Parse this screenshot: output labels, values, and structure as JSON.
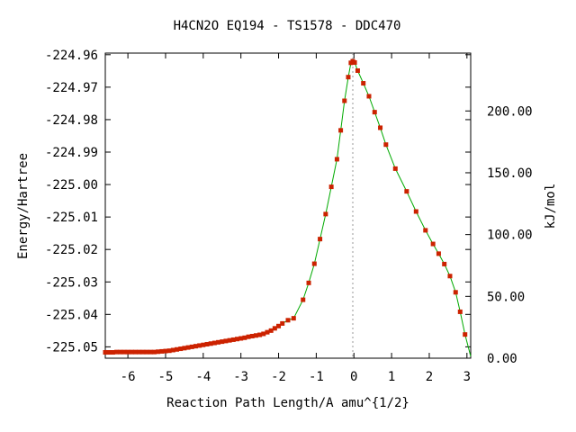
{
  "chart_data": {
    "type": "scatter",
    "title": "H4CN2O   EQ194 - TS1578 - DDC470",
    "xlabel": "Reaction Path Length/A amu^{1/2}",
    "ylabel": "Energy/Hartree",
    "y2label": "kJ/mol",
    "xlim": [
      -6.6,
      3.1
    ],
    "ylim": [
      -225.0535,
      -224.9595
    ],
    "y2lim": [
      0,
      246.8
    ],
    "x_ticks": [
      "-6",
      "-5",
      "-4",
      "-3",
      "-2",
      "-1",
      "0",
      "1",
      "2",
      "3"
    ],
    "x_tick_values": [
      -6,
      -5,
      -4,
      -3,
      -2,
      -1,
      0,
      1,
      2,
      3
    ],
    "y_ticks": [
      "-224.96",
      "-224.97",
      "-224.98",
      "-224.99",
      "-225.00",
      "-225.01",
      "-225.02",
      "-225.03",
      "-225.04",
      "-225.05"
    ],
    "y_tick_values": [
      -224.96,
      -224.97,
      -224.98,
      -224.99,
      -225.0,
      -225.01,
      -225.02,
      -225.03,
      -225.04,
      -225.05
    ],
    "y2_ticks": [
      "0.00",
      "50.00",
      "100.00",
      "150.00",
      "200.00"
    ],
    "y2_tick_values": [
      0,
      50,
      100,
      150,
      200
    ],
    "ts_x": -0.03,
    "grid": false,
    "colors": {
      "line": "#00aa00",
      "marker": "#cc2200",
      "ts_line": "#999999"
    },
    "series": [
      {
        "x": [
          -6.6,
          -6.5,
          -6.4,
          -6.3,
          -6.2,
          -6.1,
          -6.0,
          -5.9,
          -5.8,
          -5.7,
          -5.6,
          -5.5,
          -5.4,
          -5.3,
          -5.2,
          -5.1,
          -5.0,
          -4.9,
          -4.8,
          -4.7,
          -4.6,
          -4.5,
          -4.4,
          -4.3,
          -4.2,
          -4.1,
          -4.0,
          -3.9,
          -3.8,
          -3.7,
          -3.6,
          -3.5,
          -3.4,
          -3.3,
          -3.2,
          -3.1,
          -3.0,
          -2.9,
          -2.8,
          -2.7,
          -2.6,
          -2.5,
          -2.4,
          -2.3,
          -2.2,
          -2.1,
          -2.0,
          -1.9,
          -1.75,
          -1.6,
          -1.35,
          -1.2,
          -1.05,
          -0.9,
          -0.75,
          -0.6,
          -0.45,
          -0.35,
          -0.25,
          -0.15,
          -0.08,
          -0.03,
          0.02,
          0.1,
          0.25,
          0.4,
          0.55,
          0.7,
          0.85,
          1.1,
          1.4,
          1.65,
          1.9,
          2.1,
          2.25,
          2.4,
          2.55,
          2.7,
          2.82,
          2.95
        ],
        "y": [
          -225.0517,
          -225.0517,
          -225.0517,
          -225.0516,
          -225.0516,
          -225.0516,
          -225.0516,
          -225.0516,
          -225.0516,
          -225.0516,
          -225.0516,
          -225.0516,
          -225.0516,
          -225.0516,
          -225.0515,
          -225.0514,
          -225.0513,
          -225.0512,
          -225.051,
          -225.0508,
          -225.0506,
          -225.0504,
          -225.0502,
          -225.05,
          -225.0498,
          -225.0496,
          -225.0494,
          -225.0492,
          -225.049,
          -225.0488,
          -225.0486,
          -225.0484,
          -225.0482,
          -225.048,
          -225.0478,
          -225.0476,
          -225.0474,
          -225.0472,
          -225.0469,
          -225.0467,
          -225.0465,
          -225.0463,
          -225.046,
          -225.0455,
          -225.045,
          -225.0443,
          -225.0436,
          -225.0428,
          -225.0418,
          -225.0412,
          -225.0355,
          -225.0303,
          -225.0244,
          -225.0168,
          -225.0091,
          -225.0007,
          -224.9922,
          -224.9833,
          -224.9742,
          -224.9669,
          -224.9625,
          -224.962,
          -224.9624,
          -224.9649,
          -224.9688,
          -224.9728,
          -224.9777,
          -224.9825,
          -224.9877,
          -224.9951,
          -225.0021,
          -225.0083,
          -225.0141,
          -225.0183,
          -225.0213,
          -225.0245,
          -225.0282,
          -225.0332,
          -225.0392,
          -225.0462
        ]
      }
    ]
  }
}
